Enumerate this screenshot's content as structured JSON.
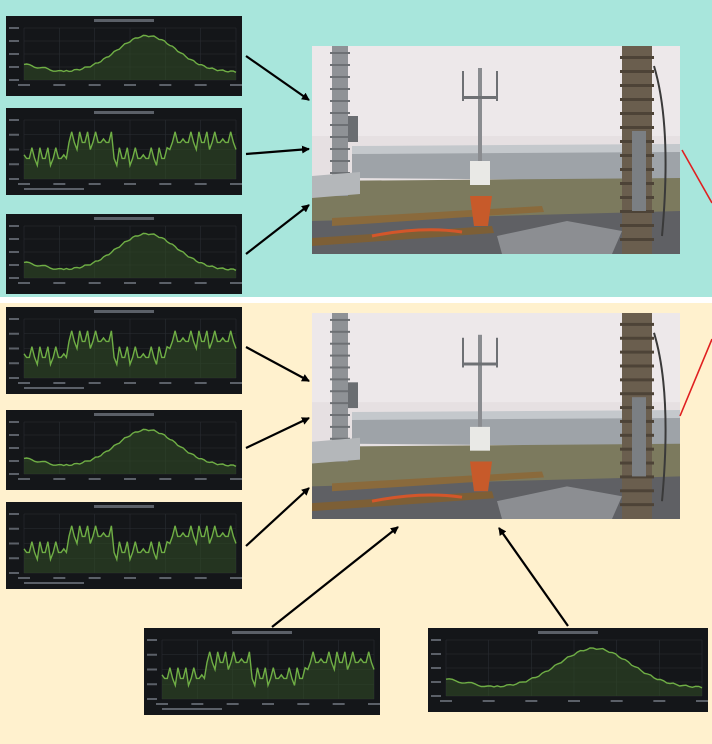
{
  "colors": {
    "top_panel_bg": "#a8e6dc",
    "bottom_panel_bg": "#fff1ce",
    "chart_bg": "#141619",
    "chart_grid": "#2a2d33",
    "chart_line": "#6fae45",
    "chart_fill": "#2f4a25",
    "arrow": "#000000",
    "red_line": "#e02020"
  },
  "icons": {
    "arrow_head": "arrowhead-icon"
  },
  "chart_kinds": {
    "temperature": "smooth-peak-area-line",
    "status": "stepped-oscillating-area-line"
  },
  "panels": {
    "top": {
      "thumbnails": [
        "temperature",
        "status",
        "temperature"
      ],
      "photo": "rooftop-weather-sensor-station"
    },
    "bottom": {
      "thumbnails": [
        "status",
        "temperature",
        "status",
        "status",
        "temperature"
      ],
      "photo": "rooftop-weather-sensor-station"
    }
  }
}
